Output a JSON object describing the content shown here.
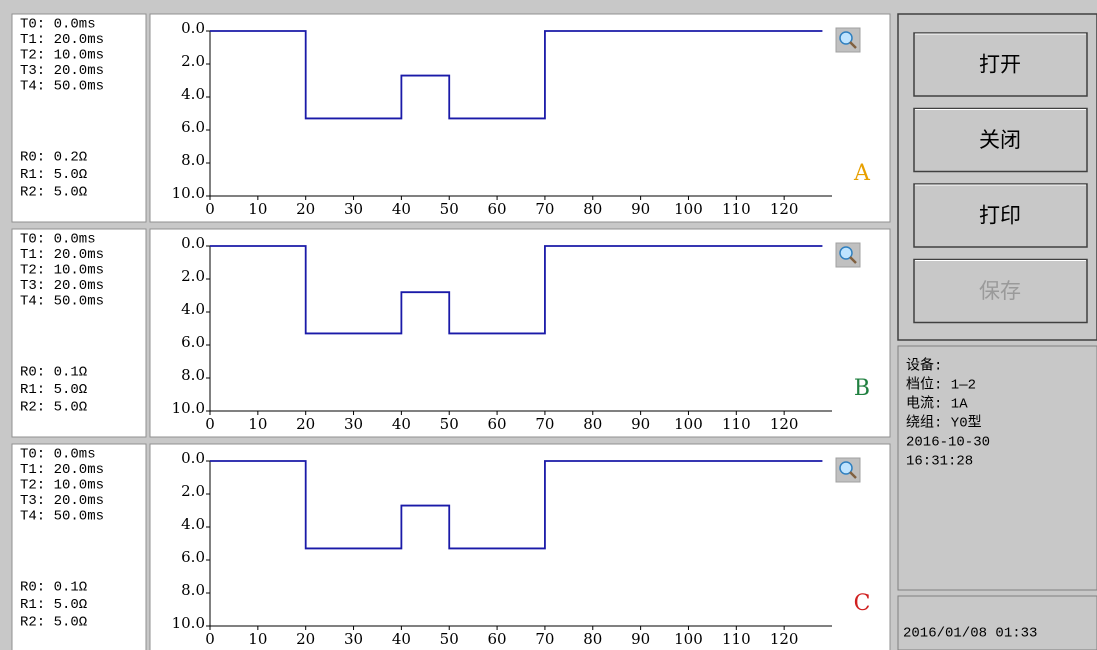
{
  "panels": [
    {
      "params": [
        "T0: 0.0ms",
        "T1: 20.0ms",
        "T2: 10.0ms",
        "T3: 20.0ms",
        "T4: 50.0ms",
        "R0: 0.2Ω",
        "R1: 5.0Ω",
        "R2: 5.0Ω"
      ],
      "chart": {
        "type": "line",
        "label": "A",
        "label_color": "#e8a000",
        "color": "#1a1aa8",
        "x": [
          0,
          20,
          20,
          40,
          40,
          50,
          50,
          70,
          70,
          128
        ],
        "values": [
          0,
          0,
          5.3,
          5.3,
          2.7,
          2.7,
          5.3,
          5.3,
          0,
          0
        ],
        "xlim": [
          0,
          130
        ],
        "ylim": [
          0,
          10
        ],
        "y_inverted": true,
        "xticks": [
          0,
          10,
          20,
          30,
          40,
          50,
          60,
          70,
          80,
          90,
          100,
          110,
          120
        ],
        "yticks": [
          {
            "value": 0,
            "label": "0.0"
          },
          {
            "value": 2,
            "label": "2.0"
          },
          {
            "value": 4,
            "label": "4.0"
          },
          {
            "value": 6,
            "label": "6.0"
          },
          {
            "value": 8,
            "label": "8.0"
          },
          {
            "value": 10,
            "label": "10.0"
          }
        ]
      }
    },
    {
      "params": [
        "T0: 0.0ms",
        "T1: 20.0ms",
        "T2: 10.0ms",
        "T3: 20.0ms",
        "T4: 50.0ms",
        "R0: 0.1Ω",
        "R1: 5.0Ω",
        "R2: 5.0Ω"
      ],
      "chart": {
        "type": "line",
        "label": "B",
        "label_color": "#208040",
        "color": "#1a1aa8",
        "x": [
          0,
          20,
          20,
          40,
          40,
          50,
          50,
          70,
          70,
          128
        ],
        "values": [
          0,
          0,
          5.3,
          5.3,
          2.8,
          2.8,
          5.3,
          5.3,
          0,
          0
        ],
        "xlim": [
          0,
          130
        ],
        "ylim": [
          0,
          10
        ],
        "y_inverted": true,
        "xticks": [
          0,
          10,
          20,
          30,
          40,
          50,
          60,
          70,
          80,
          90,
          100,
          110,
          120
        ],
        "yticks": [
          {
            "value": 0,
            "label": "0.0"
          },
          {
            "value": 2,
            "label": "2.0"
          },
          {
            "value": 4,
            "label": "4.0"
          },
          {
            "value": 6,
            "label": "6.0"
          },
          {
            "value": 8,
            "label": "8.0"
          },
          {
            "value": 10,
            "label": "10.0"
          }
        ]
      }
    },
    {
      "params": [
        "T0: 0.0ms",
        "T1: 20.0ms",
        "T2: 10.0ms",
        "T3: 20.0ms",
        "T4: 50.0ms",
        "R0: 0.1Ω",
        "R1: 5.0Ω",
        "R2: 5.0Ω"
      ],
      "chart": {
        "type": "line",
        "label": "C",
        "label_color": "#d02020",
        "color": "#1a1aa8",
        "x": [
          0,
          20,
          20,
          40,
          40,
          50,
          50,
          70,
          70,
          128
        ],
        "values": [
          0,
          0,
          5.3,
          5.3,
          2.7,
          2.7,
          5.3,
          5.3,
          0,
          0
        ],
        "xlim": [
          0,
          130
        ],
        "ylim": [
          0,
          10
        ],
        "y_inverted": true,
        "xticks": [
          0,
          10,
          20,
          30,
          40,
          50,
          60,
          70,
          80,
          90,
          100,
          110,
          120
        ],
        "yticks": [
          {
            "value": 0,
            "label": "0.0"
          },
          {
            "value": 2,
            "label": "2.0"
          },
          {
            "value": 4,
            "label": "4.0"
          },
          {
            "value": 6,
            "label": "6.0"
          },
          {
            "value": 8,
            "label": "8.0"
          },
          {
            "value": 10,
            "label": "10.0"
          }
        ]
      }
    }
  ],
  "buttons": [
    {
      "label": "打开",
      "enabled": true
    },
    {
      "label": "关闭",
      "enabled": true
    },
    {
      "label": "打印",
      "enabled": true
    },
    {
      "label": "保存",
      "enabled": false
    }
  ],
  "info": [
    "设备:",
    "档位: 1—2",
    "电流: 1A",
    "绕组: Y0型",
    "2016-10-30",
    "16:31:28"
  ],
  "status": "2016/01/08 01:33"
}
